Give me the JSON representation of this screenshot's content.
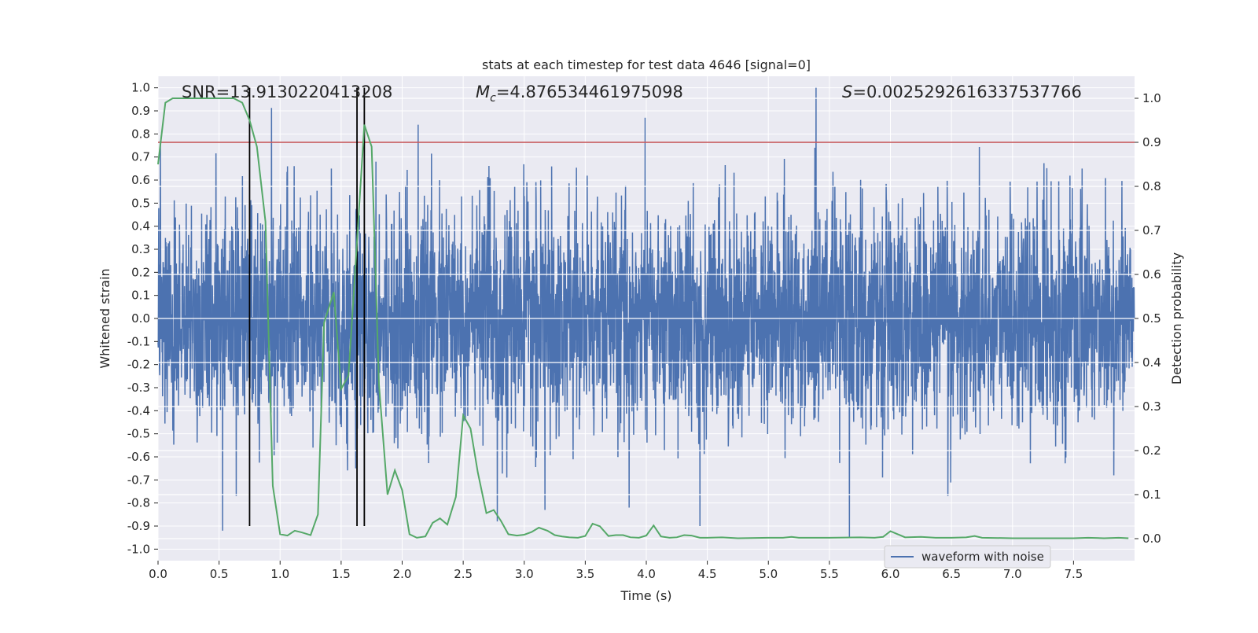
{
  "chart_data": {
    "type": "line",
    "title": "stats at each timestep for test data 4646 [signal=0]",
    "xlabel": "Time (s)",
    "ylabel": "Whitened strain",
    "y2label": "Detection probability",
    "xlim": [
      0,
      8.0
    ],
    "ylim": [
      -1.05,
      1.05
    ],
    "y2lim": [
      -0.05,
      1.05
    ],
    "x_ticks": [
      0.0,
      0.5,
      1.0,
      1.5,
      2.0,
      2.5,
      3.0,
      3.5,
      4.0,
      4.5,
      5.0,
      5.5,
      6.0,
      6.5,
      7.0,
      7.5
    ],
    "x_tick_labels": [
      "0.0",
      "0.5",
      "1.0",
      "1.5",
      "2.0",
      "2.5",
      "3.0",
      "3.5",
      "4.0",
      "4.5",
      "5.0",
      "5.5",
      "6.0",
      "6.5",
      "7.0",
      "7.5"
    ],
    "y_ticks": [
      1.0,
      0.9,
      0.8,
      0.7,
      0.6,
      0.5,
      0.4,
      0.3,
      0.2,
      0.1,
      0.0,
      -0.1,
      -0.2,
      -0.3,
      -0.4,
      -0.5,
      -0.6,
      -0.7,
      -0.8,
      -0.9,
      -1.0
    ],
    "y_tick_labels": [
      "1.0",
      "0.9",
      "0.8",
      "0.7",
      "0.6",
      "0.5",
      "0.4",
      "0.3",
      "0.2",
      "0.1",
      "0.0",
      "-0.1",
      "-0.2",
      "-0.3",
      "-0.4",
      "-0.5",
      "-0.6",
      "-0.7",
      "-0.8",
      "-0.9",
      "-1.0"
    ],
    "y2_ticks": [
      1.0,
      0.9,
      0.8,
      0.7,
      0.6,
      0.5,
      0.4,
      0.3,
      0.2,
      0.1,
      0.0
    ],
    "y2_tick_labels": [
      "1.0",
      "0.9",
      "0.8",
      "0.7",
      "0.6",
      "0.5",
      "0.4",
      "0.3",
      "0.2",
      "0.1",
      "0.0"
    ],
    "grid": true,
    "legend": {
      "location": "lower-right",
      "entries": [
        "waveform with noise"
      ]
    },
    "annotations": {
      "snr": "SNR=13.9130220413208",
      "mc_symbol": "M",
      "mc_subscript": "c",
      "mc_value": "=4.876534461975098",
      "s_symbol": "S",
      "s_value": "=0.0025292616337537766"
    },
    "threshold": {
      "axis": "y2",
      "value": 0.9,
      "color": "#c44e52"
    },
    "vertical_lines_x": [
      0.75,
      1.63,
      1.69
    ],
    "series": [
      {
        "name": "waveform with noise",
        "axis": "y",
        "color": "#4c72b0",
        "sample_rate": 512,
        "duration": 8.0,
        "envelope": {
          "upper_typical": 0.45,
          "lower_typical": -0.45
        },
        "notable_peaks": [
          {
            "x": 0.02,
            "y": 0.77
          },
          {
            "x": 0.53,
            "y": -0.92
          },
          {
            "x": 0.64,
            "y": -0.77
          },
          {
            "x": 1.42,
            "y": 0.65
          },
          {
            "x": 1.62,
            "y": -0.65
          },
          {
            "x": 2.13,
            "y": 0.84
          },
          {
            "x": 2.78,
            "y": -0.88
          },
          {
            "x": 3.17,
            "y": -0.83
          },
          {
            "x": 3.86,
            "y": -0.82
          },
          {
            "x": 3.99,
            "y": 0.87
          },
          {
            "x": 4.44,
            "y": -0.9
          },
          {
            "x": 5.39,
            "y": 1.0
          },
          {
            "x": 5.38,
            "y": 0.74
          },
          {
            "x": 6.47,
            "y": -0.77
          },
          {
            "x": 7.57,
            "y": 0.65
          },
          {
            "x": 7.83,
            "y": -0.68
          }
        ]
      },
      {
        "name": "",
        "axis": "y2",
        "color": "#55a868",
        "points": [
          [
            0.0,
            0.85
          ],
          [
            0.06,
            0.99
          ],
          [
            0.12,
            1.0
          ],
          [
            0.3,
            1.0
          ],
          [
            0.5,
            1.0
          ],
          [
            0.62,
            1.0
          ],
          [
            0.69,
            0.99
          ],
          [
            0.75,
            0.95
          ],
          [
            0.81,
            0.89
          ],
          [
            0.88,
            0.72
          ],
          [
            0.94,
            0.12
          ],
          [
            1.0,
            0.01
          ],
          [
            1.06,
            0.007
          ],
          [
            1.12,
            0.018
          ],
          [
            1.18,
            0.014
          ],
          [
            1.25,
            0.008
          ],
          [
            1.31,
            0.055
          ],
          [
            1.36,
            0.49
          ],
          [
            1.44,
            0.56
          ],
          [
            1.5,
            0.34
          ],
          [
            1.56,
            0.37
          ],
          [
            1.62,
            0.63
          ],
          [
            1.69,
            0.94
          ],
          [
            1.75,
            0.89
          ],
          [
            1.81,
            0.35
          ],
          [
            1.88,
            0.1
          ],
          [
            1.94,
            0.155
          ],
          [
            2.0,
            0.11
          ],
          [
            2.06,
            0.01
          ],
          [
            2.12,
            0.002
          ],
          [
            2.19,
            0.005
          ],
          [
            2.25,
            0.036
          ],
          [
            2.31,
            0.046
          ],
          [
            2.37,
            0.032
          ],
          [
            2.44,
            0.095
          ],
          [
            2.5,
            0.28
          ],
          [
            2.56,
            0.25
          ],
          [
            2.62,
            0.15
          ],
          [
            2.69,
            0.058
          ],
          [
            2.75,
            0.065
          ],
          [
            2.81,
            0.04
          ],
          [
            2.87,
            0.01
          ],
          [
            2.94,
            0.007
          ],
          [
            3.0,
            0.009
          ],
          [
            3.06,
            0.015
          ],
          [
            3.12,
            0.025
          ],
          [
            3.19,
            0.018
          ],
          [
            3.25,
            0.008
          ],
          [
            3.31,
            0.005
          ],
          [
            3.37,
            0.003
          ],
          [
            3.44,
            0.002
          ],
          [
            3.5,
            0.006
          ],
          [
            3.56,
            0.034
          ],
          [
            3.62,
            0.028
          ],
          [
            3.69,
            0.006
          ],
          [
            3.75,
            0.008
          ],
          [
            3.81,
            0.008
          ],
          [
            3.87,
            0.003
          ],
          [
            3.94,
            0.002
          ],
          [
            4.0,
            0.007
          ],
          [
            4.06,
            0.03
          ],
          [
            4.12,
            0.005
          ],
          [
            4.19,
            0.002
          ],
          [
            4.25,
            0.003
          ],
          [
            4.31,
            0.008
          ],
          [
            4.37,
            0.007
          ],
          [
            4.44,
            0.002
          ],
          [
            4.5,
            0.002
          ],
          [
            4.62,
            0.003
          ],
          [
            4.75,
            0.001
          ],
          [
            5.0,
            0.002
          ],
          [
            5.12,
            0.002
          ],
          [
            5.19,
            0.004
          ],
          [
            5.25,
            0.002
          ],
          [
            5.5,
            0.002
          ],
          [
            5.75,
            0.003
          ],
          [
            5.87,
            0.002
          ],
          [
            5.94,
            0.004
          ],
          [
            6.0,
            0.017
          ],
          [
            6.06,
            0.01
          ],
          [
            6.12,
            0.003
          ],
          [
            6.25,
            0.004
          ],
          [
            6.37,
            0.002
          ],
          [
            6.5,
            0.002
          ],
          [
            6.62,
            0.003
          ],
          [
            6.69,
            0.006
          ],
          [
            6.75,
            0.002
          ],
          [
            7.0,
            0.001
          ],
          [
            7.25,
            0.001
          ],
          [
            7.5,
            0.001
          ],
          [
            7.62,
            0.002
          ],
          [
            7.75,
            0.001
          ],
          [
            7.87,
            0.002
          ],
          [
            7.95,
            0.001
          ]
        ]
      }
    ]
  }
}
